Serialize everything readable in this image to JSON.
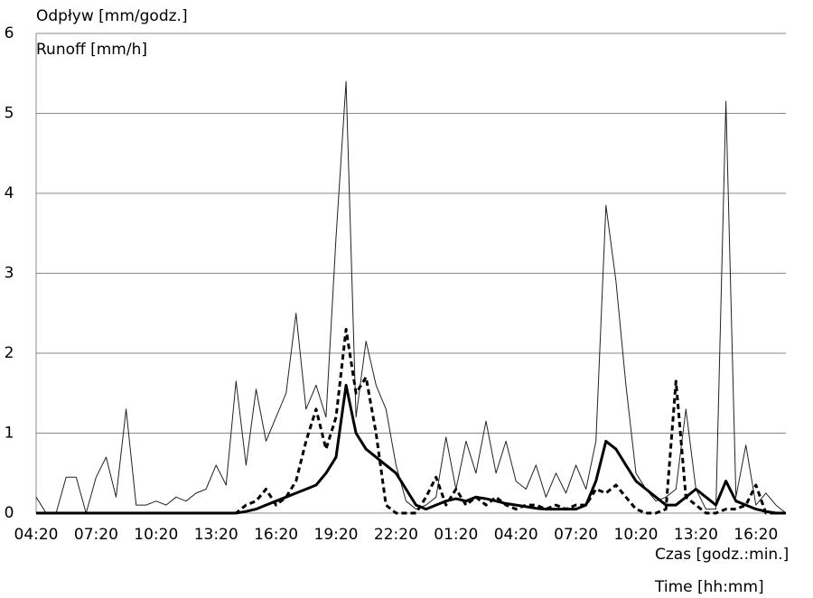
{
  "chart_data": {
    "type": "line",
    "y_label_lines": [
      "Odpływ [mm/godz.]",
      "Runoff [mm/h]"
    ],
    "x_label_lines": [
      "Czas [godz.:min.]",
      "Time [hh:mm]"
    ],
    "categories": [
      "04:20",
      null,
      null,
      null,
      null,
      null,
      "07:20",
      null,
      null,
      null,
      null,
      null,
      "10:20",
      null,
      null,
      null,
      null,
      null,
      "13:20",
      null,
      null,
      null,
      null,
      null,
      "16:20",
      null,
      null,
      null,
      null,
      null,
      "19:20",
      null,
      null,
      null,
      null,
      null,
      "22:20",
      null,
      null,
      null,
      null,
      null,
      "01:20",
      null,
      null,
      null,
      null,
      null,
      "04:20",
      null,
      null,
      null,
      null,
      null,
      "07:20",
      null,
      null,
      null,
      null,
      null,
      "10:20",
      null,
      null,
      null,
      null,
      null,
      "13:20",
      null,
      null,
      null,
      null,
      null,
      "16:20",
      null,
      null,
      null
    ],
    "series": [
      {
        "color": "#222222",
        "linestyle": "thin",
        "values": [
          0.2,
          0,
          0,
          0.45,
          0.45,
          0,
          0.45,
          0.7,
          0.2,
          1.3,
          0.1,
          0.1,
          0.15,
          0.1,
          0.2,
          0.15,
          0.25,
          0.3,
          0.6,
          0.35,
          1.65,
          0.6,
          1.55,
          0.9,
          1.2,
          1.5,
          2.5,
          1.3,
          1.6,
          1.2,
          3.45,
          5.4,
          1.2,
          2.15,
          1.6,
          1.3,
          0.6,
          0.15,
          0.05,
          0.1,
          0.2,
          0.95,
          0.3,
          0.9,
          0.5,
          1.15,
          0.5,
          0.9,
          0.4,
          0.3,
          0.6,
          0.2,
          0.5,
          0.25,
          0.6,
          0.3,
          0.9,
          3.85,
          2.9,
          1.6,
          0.5,
          0.3,
          0.15,
          0.2,
          0.3,
          1.3,
          0.3,
          0.05,
          0.05,
          5.15,
          0.2,
          0.85,
          0.1,
          0.25,
          0.1,
          0
        ]
      },
      {
        "color": "#000000",
        "linestyle": "bold",
        "values": [
          0,
          0,
          0,
          0,
          0,
          0,
          0,
          0,
          0,
          0,
          0,
          0,
          0,
          0,
          0,
          0,
          0,
          0,
          0,
          0,
          0,
          0.02,
          0.05,
          0.1,
          0.15,
          0.2,
          0.25,
          0.3,
          0.35,
          0.5,
          0.7,
          1.6,
          1.0,
          0.8,
          0.7,
          0.6,
          0.5,
          0.3,
          0.1,
          0.05,
          0.1,
          0.15,
          0.18,
          0.15,
          0.2,
          0.18,
          0.15,
          0.12,
          0.1,
          0.08,
          0.06,
          0.05,
          0.05,
          0.05,
          0.05,
          0.1,
          0.4,
          0.9,
          0.8,
          0.6,
          0.4,
          0.3,
          0.2,
          0.1,
          0.1,
          0.2,
          0.3,
          0.2,
          0.1,
          0.4,
          0.15,
          0.1,
          0.05,
          0.02,
          0,
          0
        ]
      },
      {
        "color": "#000000",
        "linestyle": "dashed",
        "values": [
          0,
          0,
          0,
          0,
          0,
          0,
          0,
          0,
          0,
          0,
          0,
          0,
          0,
          0,
          0,
          0,
          0,
          0,
          0,
          0,
          0,
          0.1,
          0.15,
          0.3,
          0.1,
          0.2,
          0.4,
          0.9,
          1.3,
          0.8,
          1.2,
          2.3,
          1.5,
          1.7,
          1.0,
          0.1,
          0,
          0,
          0,
          0.2,
          0.45,
          0.1,
          0.3,
          0.1,
          0.2,
          0.1,
          0.2,
          0.1,
          0.05,
          0.1,
          0.1,
          0.05,
          0.1,
          0.05,
          0.1,
          0.1,
          0.3,
          0.25,
          0.35,
          0.2,
          0.05,
          0,
          0,
          0.05,
          1.65,
          0.2,
          0.1,
          0,
          0,
          0.05,
          0.05,
          0.1,
          0.35,
          0,
          0,
          0
        ]
      }
    ],
    "ylim": [
      0,
      6
    ],
    "yticks": [
      0,
      1,
      2,
      3,
      4,
      5,
      6
    ],
    "grid": true
  }
}
